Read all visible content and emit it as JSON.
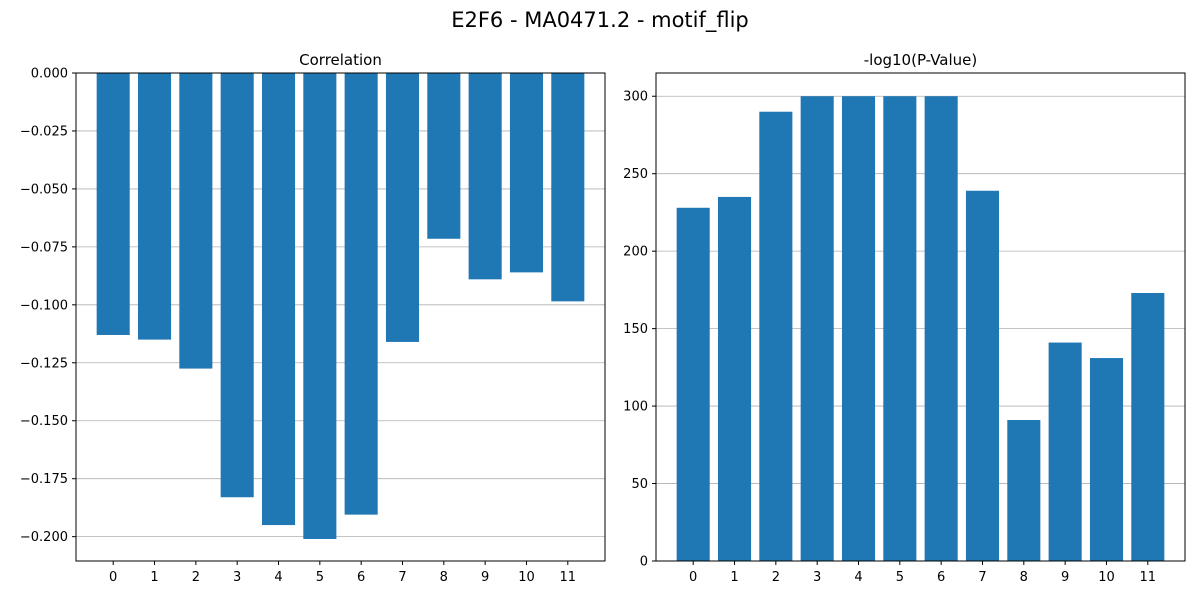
{
  "figure": {
    "title": "E2F6 - MA0471.2 - motif_flip"
  },
  "colors": {
    "bar": "#1f77b4",
    "grid": "#b0b0b0",
    "axis": "#000000"
  },
  "chart_data": [
    {
      "type": "bar",
      "title": "Correlation",
      "categories": [
        "0",
        "1",
        "2",
        "3",
        "4",
        "5",
        "6",
        "7",
        "8",
        "9",
        "10",
        "11"
      ],
      "values": [
        -0.113,
        -0.115,
        -0.1275,
        -0.183,
        -0.195,
        -0.201,
        -0.1905,
        -0.116,
        -0.0715,
        -0.089,
        -0.086,
        -0.0985
      ],
      "ylim": [
        -0.2105,
        0.0
      ],
      "yticks": [
        0.0,
        -0.025,
        -0.05,
        -0.075,
        -0.1,
        -0.125,
        -0.15,
        -0.175,
        -0.2
      ],
      "ytick_labels": [
        "0.000",
        "−0.025",
        "−0.050",
        "−0.075",
        "−0.100",
        "−0.125",
        "−0.150",
        "−0.175",
        "−0.200"
      ],
      "grid": "y",
      "xlabel": "",
      "ylabel": ""
    },
    {
      "type": "bar",
      "title": "-log10(P-Value)",
      "categories": [
        "0",
        "1",
        "2",
        "3",
        "4",
        "5",
        "6",
        "7",
        "8",
        "9",
        "10",
        "11"
      ],
      "values": [
        228,
        235,
        290,
        300,
        300,
        300,
        300,
        239,
        91,
        141,
        131,
        173
      ],
      "ylim": [
        0,
        315
      ],
      "yticks": [
        0,
        50,
        100,
        150,
        200,
        250,
        300
      ],
      "ytick_labels": [
        "0",
        "50",
        "100",
        "150",
        "200",
        "250",
        "300"
      ],
      "grid": "y",
      "xlabel": "",
      "ylabel": ""
    }
  ]
}
